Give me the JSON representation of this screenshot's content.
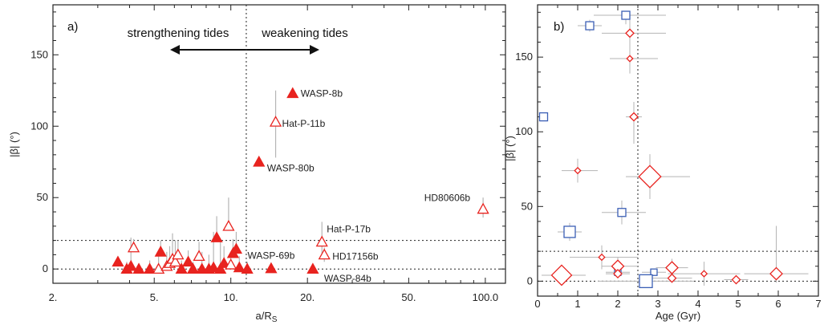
{
  "chart_data": [
    {
      "type": "scatter",
      "panel_label": "a)",
      "xlabel": "a/R",
      "xlabel_sub": "S",
      "ylabel": "|β| (°)",
      "xscale": "log",
      "xlim": [
        2,
        120
      ],
      "ylim": [
        -10,
        185
      ],
      "xticks": [
        2,
        5,
        10,
        20,
        50,
        100
      ],
      "xtick_labels": [
        "2.",
        "5.",
        "10.",
        "20.",
        "50.",
        "100.0"
      ],
      "yticks": [
        0,
        50,
        100,
        150
      ],
      "region_labels": {
        "left": "strengthening tides",
        "right": "weakening tides"
      },
      "reference_lines": {
        "vertical_x": 11.5,
        "horizontal_y": [
          0,
          20
        ]
      },
      "marker_color": "#e8231f",
      "labeled_points": [
        {
          "name": "WASP-8b",
          "x": 17.5,
          "y": 123,
          "filled": true,
          "err_low": 0,
          "err_high": 0
        },
        {
          "name": "Hat-P-11b",
          "x": 15.0,
          "y": 103,
          "filled": false,
          "err_low": 25,
          "err_high": 22
        },
        {
          "name": "WASP-80b",
          "x": 12.9,
          "y": 75,
          "filled": true,
          "err_low": 3,
          "err_high": 3
        },
        {
          "name": "HD80606b",
          "x": 98.0,
          "y": 42,
          "filled": false,
          "err_low": 6,
          "err_high": 8
        },
        {
          "name": "Hat-P-17b",
          "x": 22.8,
          "y": 19,
          "filled": false,
          "err_low": 10,
          "err_high": 14
        },
        {
          "name": "WASP-69b",
          "x": 14.4,
          "y": 0.4,
          "filled": true,
          "err_low": 0,
          "err_high": 2
        },
        {
          "name": "HD17156b",
          "x": 23.3,
          "y": 10,
          "filled": false,
          "err_low": 5,
          "err_high": 5
        },
        {
          "name": "WASP-84b",
          "x": 21.0,
          "y": 0,
          "filled": true,
          "err_low": 0,
          "err_high": 2
        }
      ],
      "points": [
        {
          "x": 3.6,
          "y": 5,
          "filled": true,
          "err_high": 3
        },
        {
          "x": 3.9,
          "y": 0,
          "filled": true,
          "err_high": 5
        },
        {
          "x": 4.05,
          "y": 2,
          "filled": true,
          "err_high": 20
        },
        {
          "x": 4.15,
          "y": 15,
          "filled": false,
          "err_high": 6
        },
        {
          "x": 4.35,
          "y": 0,
          "filled": true,
          "err_high": 4
        },
        {
          "x": 4.8,
          "y": 0,
          "filled": true,
          "err_high": 6
        },
        {
          "x": 5.2,
          "y": 0,
          "filled": false,
          "err_high": 10
        },
        {
          "x": 5.3,
          "y": 12,
          "filled": true,
          "err_high": 8
        },
        {
          "x": 5.6,
          "y": 2,
          "filled": false,
          "err_high": 10
        },
        {
          "x": 5.75,
          "y": 4,
          "filled": false,
          "err_high": 12
        },
        {
          "x": 5.9,
          "y": 7,
          "filled": false,
          "err_high": 18
        },
        {
          "x": 6.05,
          "y": 5,
          "filled": false,
          "err_high": 15
        },
        {
          "x": 6.2,
          "y": 10,
          "filled": false,
          "err_high": 10
        },
        {
          "x": 6.4,
          "y": 0,
          "filled": true,
          "err_high": 6
        },
        {
          "x": 6.8,
          "y": 5,
          "filled": true,
          "err_high": 8
        },
        {
          "x": 7.1,
          "y": 0,
          "filled": true,
          "err_high": 5
        },
        {
          "x": 7.5,
          "y": 9,
          "filled": false,
          "err_high": 10
        },
        {
          "x": 7.7,
          "y": 0,
          "filled": true,
          "err_high": 12
        },
        {
          "x": 8.2,
          "y": 0,
          "filled": true,
          "err_high": 10
        },
        {
          "x": 8.55,
          "y": 1,
          "filled": true,
          "err_high": 25
        },
        {
          "x": 8.8,
          "y": 22,
          "filled": true,
          "err_high": 15
        },
        {
          "x": 9.1,
          "y": 0,
          "filled": true,
          "err_high": 20
        },
        {
          "x": 9.4,
          "y": 4,
          "filled": true,
          "err_high": 12
        },
        {
          "x": 9.8,
          "y": 30,
          "filled": false,
          "err_high": 20
        },
        {
          "x": 10.0,
          "y": 3,
          "filled": false,
          "err_high": 8
        },
        {
          "x": 10.2,
          "y": 11,
          "filled": true,
          "err_high": 10
        },
        {
          "x": 10.5,
          "y": 14,
          "filled": true,
          "err_high": 12
        },
        {
          "x": 10.8,
          "y": 1,
          "filled": true,
          "err_high": 8
        },
        {
          "x": 11.6,
          "y": 0,
          "filled": true,
          "err_high": 5
        }
      ]
    },
    {
      "type": "scatter",
      "panel_label": "b)",
      "xlabel": "Age  (Gyr)",
      "ylabel": "|β| (°)",
      "xlim": [
        0,
        7
      ],
      "ylim": [
        -10,
        185
      ],
      "xticks": [
        0,
        1,
        2,
        3,
        4,
        5,
        6,
        7
      ],
      "yticks": [
        0,
        50,
        100,
        150
      ],
      "reference_lines": {
        "vertical_x": 2.5,
        "horizontal_y": [
          0,
          20
        ]
      },
      "colors": {
        "square": "#3b5fb5",
        "diamond": "#e8231f"
      },
      "points": [
        {
          "shape": "square",
          "x": 1.3,
          "y": 171,
          "size": 5,
          "xerr": [
            0.3,
            0.3
          ],
          "yerr": [
            4,
            4
          ]
        },
        {
          "shape": "square",
          "x": 2.2,
          "y": 178,
          "size": 5,
          "xerr": [
            0.8,
            1.0
          ],
          "yerr": [
            6,
            2
          ]
        },
        {
          "shape": "square",
          "x": 0.15,
          "y": 110,
          "size": 5,
          "xerr": [
            0.1,
            0.1
          ],
          "yerr": [
            0,
            0
          ]
        },
        {
          "shape": "square",
          "x": 2.1,
          "y": 46,
          "size": 5,
          "xerr": [
            0.5,
            0.6
          ],
          "yerr": [
            8,
            8
          ]
        },
        {
          "shape": "square",
          "x": 0.8,
          "y": 33,
          "size": 7,
          "xerr": [
            0.3,
            0.3
          ],
          "yerr": [
            6,
            6
          ]
        },
        {
          "shape": "square",
          "x": 2.0,
          "y": 6,
          "size": 4,
          "xerr": [
            0.3,
            0.3
          ],
          "yerr": [
            2,
            2
          ]
        },
        {
          "shape": "square",
          "x": 2.9,
          "y": 6,
          "size": 4,
          "xerr": [
            0.3,
            0.3
          ],
          "yerr": [
            2,
            2
          ]
        },
        {
          "shape": "square",
          "x": 2.7,
          "y": 0,
          "size": 8,
          "xerr": [
            1.2,
            1.2
          ],
          "yerr": [
            2,
            2
          ]
        },
        {
          "shape": "diamond",
          "x": 2.3,
          "y": 166,
          "size": 4,
          "xerr": [
            0.7,
            0.9
          ],
          "yerr": [
            14,
            12
          ]
        },
        {
          "shape": "diamond",
          "x": 2.3,
          "y": 149,
          "size": 3,
          "xerr": [
            0.5,
            0.7
          ],
          "yerr": [
            10,
            10
          ]
        },
        {
          "shape": "diamond",
          "x": 2.4,
          "y": 110,
          "size": 4,
          "xerr": [
            0.2,
            0.2
          ],
          "yerr": [
            18,
            10
          ]
        },
        {
          "shape": "diamond",
          "x": 1.0,
          "y": 74,
          "size": 3,
          "xerr": [
            0.4,
            0.5
          ],
          "yerr": [
            8,
            8
          ]
        },
        {
          "shape": "diamond",
          "x": 2.8,
          "y": 70,
          "size": 11,
          "xerr": [
            0.6,
            1.0
          ],
          "yerr": [
            15,
            15
          ]
        },
        {
          "shape": "diamond",
          "x": 1.6,
          "y": 16,
          "size": 3,
          "xerr": [
            0.8,
            0.9
          ],
          "yerr": [
            8,
            8
          ]
        },
        {
          "shape": "diamond",
          "x": 2.0,
          "y": 10,
          "size": 6,
          "xerr": [
            0.4,
            0.5
          ],
          "yerr": [
            6,
            6
          ]
        },
        {
          "shape": "diamond",
          "x": 2.0,
          "y": 5,
          "size": 4,
          "xerr": [
            0.3,
            0.3
          ],
          "yerr": [
            3,
            3
          ]
        },
        {
          "shape": "diamond",
          "x": 0.6,
          "y": 4,
          "size": 10,
          "xerr": [
            0.5,
            0.6
          ],
          "yerr": [
            4,
            4
          ]
        },
        {
          "shape": "diamond",
          "x": 3.35,
          "y": 9,
          "size": 6,
          "xerr": [
            0.4,
            0.4
          ],
          "yerr": [
            6,
            6
          ]
        },
        {
          "shape": "diamond",
          "x": 3.35,
          "y": 2,
          "size": 4,
          "xerr": [
            0.5,
            0.5
          ],
          "yerr": [
            3,
            3
          ]
        },
        {
          "shape": "diamond",
          "x": 4.15,
          "y": 5,
          "size": 3,
          "xerr": [
            0.9,
            0.9
          ],
          "yerr": [
            8,
            8
          ]
        },
        {
          "shape": "diamond",
          "x": 4.95,
          "y": 1,
          "size": 4,
          "xerr": [
            0.3,
            0.3
          ],
          "yerr": [
            3,
            3
          ]
        },
        {
          "shape": "diamond",
          "x": 5.95,
          "y": 5,
          "size": 6,
          "xerr": [
            0.8,
            0.8
          ],
          "yerr": [
            6,
            32
          ]
        }
      ]
    }
  ]
}
